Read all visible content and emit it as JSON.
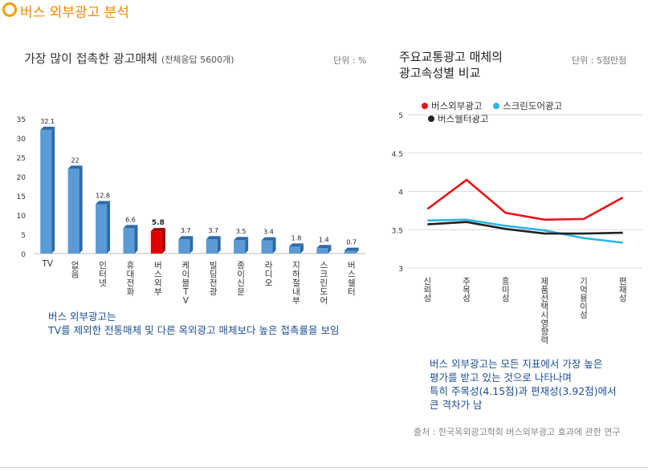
{
  "header": {
    "title": "버스 외부광고 분석"
  },
  "left": {
    "title": "가장 많이 접촉한 광고매체",
    "title_note": "(전체응답 5600개)",
    "unit": "단위 : %",
    "note_lines": [
      "버스 외부광고는",
      "TV를 제외한 전통매체 및 다른 옥외광고 매체보다 높은 접촉률을 보임"
    ]
  },
  "right": {
    "title_lines": [
      "주요교통광고 매체의",
      "광고속성별 비교"
    ],
    "unit": "단위 : 5점만점",
    "note_lines": [
      "버스 외부광고는 모든 지표에서 가장 높은",
      "평가를 받고 있는 것으로 나타나며",
      "특히 주목성(4.15점)과 편재성(3.92점)에서",
      "큰 격차가 남"
    ],
    "source": "출처 :  한국옥외광고학회 버스외부광고 효과에 관한 연구"
  },
  "chart_data": [
    {
      "type": "bar",
      "categories": [
        "TV",
        "없음",
        "인터넷",
        "휴대전화",
        "버스외부",
        "케이블TV",
        "빌딩전광",
        "종이신문",
        "라디오",
        "지하철내부",
        "스크린도어",
        "버스쉘터"
      ],
      "values": [
        32.1,
        22,
        12.8,
        6.6,
        5.8,
        3.7,
        3.7,
        3.5,
        3.4,
        1.8,
        1.4,
        0.7
      ],
      "value_labels": [
        "32.1",
        "22",
        "12.8",
        "6.6",
        "5.8",
        "3.7",
        "3.7",
        "3.5",
        "3.4",
        "1.8",
        "1.4",
        "0.7"
      ],
      "highlight_index": 4,
      "yticks": [
        "0",
        "5",
        "10",
        "15",
        "20",
        "25",
        "30",
        "35"
      ],
      "ylim": [
        0,
        35
      ],
      "colors": {
        "bar": "#5b9bd5",
        "bar_side": "#2e6aa6",
        "highlight": "#e00000",
        "highlight_side": "#a00000"
      }
    },
    {
      "type": "line",
      "categories": [
        "신뢰성",
        "주목성",
        "흥미성",
        "제품선택시영향력",
        "기억용이성",
        "편재성"
      ],
      "series": [
        {
          "name": "버스외부광고",
          "color": "#e8141c",
          "values": [
            3.77,
            4.15,
            3.72,
            3.63,
            3.64,
            3.92
          ]
        },
        {
          "name": "스크린도어광고",
          "color": "#29b6e8",
          "values": [
            3.62,
            3.63,
            3.55,
            3.49,
            3.39,
            3.33
          ]
        },
        {
          "name": "버스쉘터광고",
          "color": "#222222",
          "values": [
            3.57,
            3.6,
            3.51,
            3.45,
            3.45,
            3.46
          ]
        }
      ],
      "yticks": [
        "3",
        "3.5",
        "4",
        "4.5",
        "5"
      ],
      "ylim": [
        3,
        5
      ],
      "legend": "top"
    }
  ]
}
